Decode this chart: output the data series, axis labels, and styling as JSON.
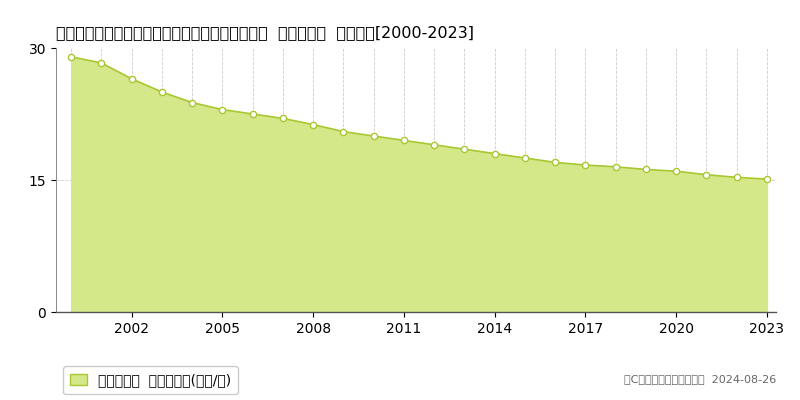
{
  "title": "愛知県知多郡武豊町大字冨貴字砂水３３番１１外  基準地価格  地価推移[2000-2023]",
  "years": [
    2000,
    2001,
    2002,
    2003,
    2004,
    2005,
    2006,
    2007,
    2008,
    2009,
    2010,
    2011,
    2012,
    2013,
    2014,
    2015,
    2016,
    2017,
    2018,
    2019,
    2020,
    2021,
    2022,
    2023
  ],
  "values": [
    29.0,
    28.3,
    26.5,
    25.0,
    23.8,
    23.0,
    22.5,
    22.0,
    21.3,
    20.5,
    20.0,
    19.5,
    19.0,
    18.5,
    18.0,
    17.5,
    17.0,
    16.7,
    16.5,
    16.2,
    16.0,
    15.6,
    15.3,
    15.1
  ],
  "ylim": [
    0,
    30
  ],
  "yticks": [
    0,
    15,
    30
  ],
  "line_color": "#a8c832",
  "fill_color": "#d4e88a",
  "marker_facecolor": "#ffffff",
  "marker_edgecolor": "#a8c832",
  "grid_color": "#cccccc",
  "grid_style": "--",
  "bg_color": "#ffffff",
  "plot_bg_color": "#ffffff",
  "legend_label": "基準地価格  平均坪単価(万円/坪)",
  "copyright_text": "（C）土地価格ドットコム  2024-08-26",
  "xtick_positions": [
    2002,
    2005,
    2008,
    2011,
    2014,
    2017,
    2020,
    2023
  ],
  "title_fontsize": 11.5,
  "tick_fontsize": 10,
  "legend_fontsize": 10,
  "copyright_fontsize": 8
}
